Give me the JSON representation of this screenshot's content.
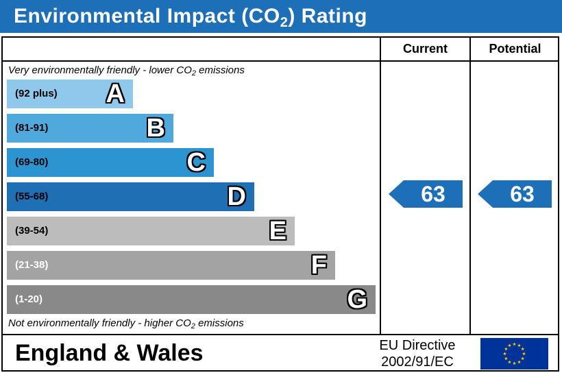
{
  "header": {
    "title_main": "Environmental Impact (CO",
    "title_sub": "2",
    "title_end": ") Rating"
  },
  "columns": {
    "current": "Current",
    "potential": "Potential"
  },
  "notes": {
    "top_main": "Very environmentally friendly - lower CO",
    "top_sub": "2",
    "top_end": " emissions",
    "bottom_main": "Not environmentally friendly - higher CO",
    "bottom_sub": "2",
    "bottom_end": " emissions"
  },
  "chart_data": {
    "type": "bar",
    "categories": [
      "A",
      "B",
      "C",
      "D",
      "E",
      "F",
      "G"
    ],
    "ranges": [
      "(92 plus)",
      "(81-91)",
      "(69-80)",
      "(55-68)",
      "(39-54)",
      "(21-38)",
      "(1-20)"
    ],
    "range_min": [
      92,
      81,
      69,
      55,
      39,
      21,
      1
    ],
    "range_max": [
      100,
      91,
      80,
      68,
      54,
      38,
      20
    ],
    "colors": [
      "#8ec9ec",
      "#4fa9dd",
      "#2b94d1",
      "#1e6fb4",
      "#bcbcbc",
      "#a3a3a3",
      "#898989"
    ],
    "range_text_colors": [
      "#000000",
      "#000000",
      "#000000",
      "#000000",
      "#000000",
      "#ffffff",
      "#ffffff"
    ],
    "current": 63,
    "potential": 63,
    "marker_color": "#1d6fb8"
  },
  "footer": {
    "country": "England & Wales",
    "directive_line1": "EU Directive",
    "directive_line2": "2002/91/EC",
    "flag_color": "#003399",
    "star_color": "#ffcc00"
  }
}
